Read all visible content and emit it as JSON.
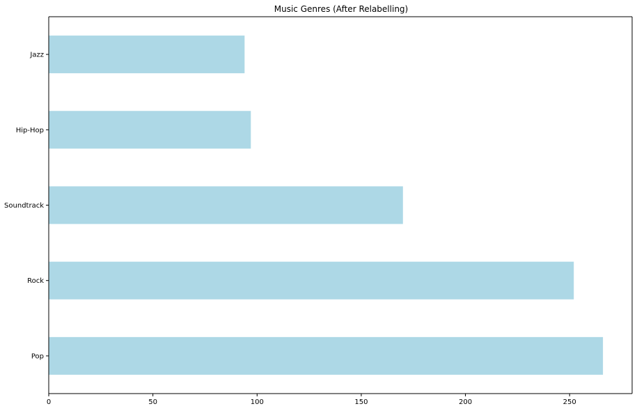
{
  "chart_data": {
    "type": "bar",
    "orientation": "horizontal",
    "title": "Music Genres (After Relabelling)",
    "xlabel": "",
    "ylabel": "",
    "categories": [
      "Pop",
      "Rock",
      "Soundtrack",
      "Hip-Hop",
      "Jazz"
    ],
    "values": [
      266,
      252,
      170,
      97,
      94
    ],
    "xlim": [
      0,
      280
    ],
    "xticks": [
      0,
      50,
      100,
      150,
      200,
      250
    ],
    "grid": false,
    "legend": "none",
    "bar_color": "#add8e6"
  }
}
